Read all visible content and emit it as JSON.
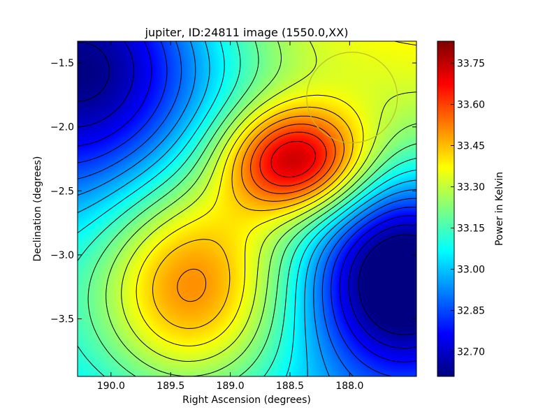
{
  "chart_data": {
    "type": "heatmap",
    "title": "jupiter, ID:24811 image (1550.0,XX)",
    "xlabel": "Right Ascension (degrees)",
    "ylabel": "Declination (degrees)",
    "xlim": [
      190.28,
      187.44
    ],
    "ylim": [
      -3.95,
      -1.33
    ],
    "x_ticks": [
      {
        "value": 190.0,
        "label": "190.0"
      },
      {
        "value": 189.5,
        "label": "189.5"
      },
      {
        "value": 189.0,
        "label": "189.0"
      },
      {
        "value": 188.5,
        "label": "188.5"
      },
      {
        "value": 188.0,
        "label": "188.0"
      }
    ],
    "y_ticks": [
      {
        "value": -1.5,
        "label": "−1.5"
      },
      {
        "value": -2.0,
        "label": "−2.0"
      },
      {
        "value": -2.5,
        "label": "−2.5"
      },
      {
        "value": -3.0,
        "label": "−3.0"
      },
      {
        "value": -3.5,
        "label": "−3.5"
      }
    ],
    "colormap": "jet",
    "colorbar": {
      "label": "Power in Kelvin",
      "range": [
        32.61,
        33.83
      ],
      "ticks": [
        {
          "value": 32.7,
          "label": "32.70"
        },
        {
          "value": 32.85,
          "label": "32.85"
        },
        {
          "value": 33.0,
          "label": "33.00"
        },
        {
          "value": 33.15,
          "label": "33.15"
        },
        {
          "value": 33.3,
          "label": "33.30"
        },
        {
          "value": 33.45,
          "label": "33.45"
        },
        {
          "value": 33.6,
          "label": "33.60"
        },
        {
          "value": 33.75,
          "label": "33.75"
        }
      ]
    },
    "field": {
      "base": 33.22,
      "trend_dec": 0.13,
      "components": [
        {
          "kind": "peak",
          "ra": 188.45,
          "dec": -2.27,
          "amp": 0.55,
          "sigma_ra": 0.42,
          "sigma_dec": 0.3
        },
        {
          "kind": "peak",
          "ra": 189.35,
          "dec": -3.25,
          "amp": 0.42,
          "sigma_ra": 0.55,
          "sigma_dec": 0.6
        },
        {
          "kind": "trough",
          "ra": 190.25,
          "dec": -1.45,
          "amp": 0.75,
          "sigma_ra": 0.9,
          "sigma_dec": 0.85
        },
        {
          "kind": "trough",
          "ra": 187.55,
          "dec": -3.15,
          "amp": 0.65,
          "sigma_ra": 0.55,
          "sigma_dec": 0.55
        }
      ],
      "contour_levels": 20
    },
    "marker": {
      "shape": "circle",
      "ra": 187.98,
      "dec": -1.77,
      "radius_deg": 0.38,
      "color": "#bdbd2a"
    }
  }
}
